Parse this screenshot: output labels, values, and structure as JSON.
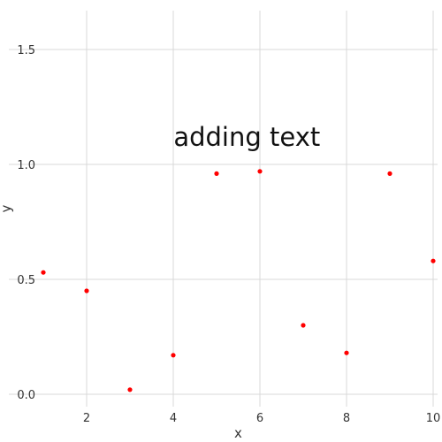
{
  "chart_data": {
    "type": "scatter",
    "title": "",
    "xlabel": "x",
    "ylabel": "y",
    "xlim": [
      1,
      10
    ],
    "ylim": [
      0,
      1.5
    ],
    "x_ticks": [
      2,
      4,
      6,
      8,
      10
    ],
    "y_ticks": [
      0.0,
      0.5,
      1.0,
      1.5
    ],
    "x_tick_labels": [
      "2",
      "4",
      "6",
      "8",
      "10"
    ],
    "y_tick_labels": [
      "0.0",
      "0.5",
      "1.0",
      "1.5"
    ],
    "grid": true,
    "point_color": "#ff0000",
    "annotation": {
      "text": "adding text",
      "x": 5.7,
      "y": 1.12
    },
    "points": [
      {
        "x": 1,
        "y": 0.53
      },
      {
        "x": 2,
        "y": 0.45
      },
      {
        "x": 3,
        "y": 0.02
      },
      {
        "x": 4,
        "y": 0.17
      },
      {
        "x": 5,
        "y": 0.96
      },
      {
        "x": 6,
        "y": 0.97
      },
      {
        "x": 7,
        "y": 0.3
      },
      {
        "x": 8,
        "y": 0.18
      },
      {
        "x": 9,
        "y": 0.96
      },
      {
        "x": 10,
        "y": 0.58
      }
    ]
  }
}
